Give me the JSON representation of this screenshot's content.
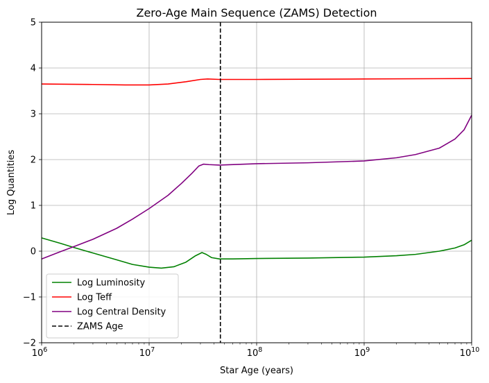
{
  "chart_data": {
    "type": "line",
    "title": "Zero-Age Main Sequence (ZAMS) Detection",
    "xlabel": "Star Age (years)",
    "ylabel": "Log Quantities",
    "xscale": "log",
    "xlim": [
      1000000,
      10000000000
    ],
    "ylim": [
      -2,
      5
    ],
    "xticks": [
      {
        "value": 1000000,
        "base": "10",
        "exp": "6"
      },
      {
        "value": 10000000,
        "base": "10",
        "exp": "7"
      },
      {
        "value": 100000000,
        "base": "10",
        "exp": "8"
      },
      {
        "value": 1000000000,
        "base": "10",
        "exp": "9"
      },
      {
        "value": 10000000000,
        "base": "10",
        "exp": "10"
      }
    ],
    "yticks": [
      {
        "value": -2,
        "label": "−2"
      },
      {
        "value": -1,
        "label": "−1"
      },
      {
        "value": 0,
        "label": "0"
      },
      {
        "value": 1,
        "label": "1"
      },
      {
        "value": 2,
        "label": "2"
      },
      {
        "value": 3,
        "label": "3"
      },
      {
        "value": 4,
        "label": "4"
      },
      {
        "value": 5,
        "label": "5"
      }
    ],
    "grid": true,
    "legend_position": "lower-left",
    "series": [
      {
        "name": "Log Luminosity",
        "color": "#008000",
        "style": "solid",
        "points": [
          [
            1000000,
            0.29
          ],
          [
            1500000,
            0.17
          ],
          [
            2000000,
            0.08
          ],
          [
            3000000,
            -0.04
          ],
          [
            5000000,
            -0.19
          ],
          [
            7000000,
            -0.29
          ],
          [
            10000000,
            -0.35
          ],
          [
            13000000,
            -0.37
          ],
          [
            17000000,
            -0.34
          ],
          [
            22000000,
            -0.24
          ],
          [
            27000000,
            -0.1
          ],
          [
            31000000,
            -0.03
          ],
          [
            34000000,
            -0.07
          ],
          [
            38000000,
            -0.14
          ],
          [
            45000000,
            -0.17
          ],
          [
            60000000,
            -0.17
          ],
          [
            100000000,
            -0.16
          ],
          [
            300000000,
            -0.15
          ],
          [
            1000000000,
            -0.13
          ],
          [
            2000000000,
            -0.1
          ],
          [
            3000000000,
            -0.07
          ],
          [
            5000000000,
            0.0
          ],
          [
            7000000000,
            0.07
          ],
          [
            8500000000,
            0.14
          ],
          [
            10000000000,
            0.24
          ]
        ]
      },
      {
        "name": "Log Teff",
        "color": "#ff0000",
        "style": "solid",
        "points": [
          [
            1000000,
            3.65
          ],
          [
            3000000,
            3.64
          ],
          [
            6000000,
            3.63
          ],
          [
            10000000,
            3.63
          ],
          [
            15000000,
            3.65
          ],
          [
            22000000,
            3.7
          ],
          [
            30000000,
            3.75
          ],
          [
            35000000,
            3.76
          ],
          [
            45000000,
            3.75
          ],
          [
            100000000,
            3.75
          ],
          [
            1000000000,
            3.76
          ],
          [
            10000000000,
            3.77
          ]
        ]
      },
      {
        "name": "Log Central Density",
        "color": "#800080",
        "style": "solid",
        "points": [
          [
            1000000,
            -0.17
          ],
          [
            1500000,
            -0.01
          ],
          [
            2000000,
            0.1
          ],
          [
            3000000,
            0.26
          ],
          [
            5000000,
            0.5
          ],
          [
            7000000,
            0.7
          ],
          [
            10000000,
            0.93
          ],
          [
            15000000,
            1.22
          ],
          [
            20000000,
            1.48
          ],
          [
            25000000,
            1.7
          ],
          [
            29000000,
            1.86
          ],
          [
            32000000,
            1.9
          ],
          [
            36000000,
            1.89
          ],
          [
            45000000,
            1.88
          ],
          [
            100000000,
            1.91
          ],
          [
            300000000,
            1.93
          ],
          [
            1000000000,
            1.97
          ],
          [
            2000000000,
            2.04
          ],
          [
            3000000000,
            2.11
          ],
          [
            5000000000,
            2.25
          ],
          [
            7000000000,
            2.45
          ],
          [
            8500000000,
            2.65
          ],
          [
            10000000000,
            2.97
          ]
        ]
      },
      {
        "name": "ZAMS Age",
        "color": "#000000",
        "style": "dashed",
        "vline": 46000000
      }
    ]
  }
}
